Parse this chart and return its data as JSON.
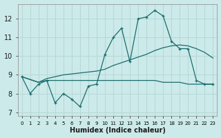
{
  "xlabel": "Humidex (Indice chaleur)",
  "bg_color": "#cceaea",
  "grid_color": "#b8d8d8",
  "line_color": "#1a6b6b",
  "xlim": [
    -0.5,
    23.5
  ],
  "ylim": [
    6.8,
    12.8
  ],
  "yticks": [
    7,
    8,
    9,
    10,
    11,
    12
  ],
  "xtick_labels": [
    "0",
    "1",
    "2",
    "3",
    "4",
    "5",
    "6",
    "7",
    "8",
    "9",
    "10",
    "11",
    "12",
    "13",
    "14",
    "15",
    "16",
    "17",
    "18",
    "19",
    "20",
    "21",
    "22",
    "23"
  ],
  "line1_x": [
    0,
    1,
    2,
    3,
    4,
    5,
    6,
    7,
    8,
    9,
    10,
    11,
    12,
    13,
    14,
    15,
    16,
    17,
    18,
    19,
    20,
    21,
    22,
    23
  ],
  "line1_y": [
    8.9,
    8.0,
    8.5,
    8.7,
    7.5,
    8.0,
    7.7,
    7.3,
    8.4,
    8.5,
    10.1,
    11.0,
    11.5,
    9.7,
    12.0,
    12.1,
    12.45,
    12.15,
    10.8,
    10.4,
    10.4,
    8.7,
    8.5,
    8.5
  ],
  "line2_x": [
    0,
    2,
    3,
    4,
    5,
    6,
    7,
    8,
    9,
    10,
    11,
    12,
    13,
    14,
    15,
    16,
    17,
    18,
    19,
    20,
    21,
    22,
    23
  ],
  "line2_y": [
    8.9,
    8.6,
    8.7,
    8.7,
    8.7,
    8.7,
    8.7,
    8.7,
    8.7,
    8.7,
    8.7,
    8.7,
    8.7,
    8.7,
    8.7,
    8.7,
    8.6,
    8.6,
    8.6,
    8.5,
    8.5,
    8.5,
    8.5
  ],
  "line3_x": [
    0,
    2,
    3,
    4,
    5,
    6,
    7,
    8,
    9,
    10,
    11,
    12,
    13,
    14,
    15,
    16,
    17,
    18,
    19,
    20,
    21,
    22,
    23
  ],
  "line3_y": [
    8.9,
    8.6,
    8.8,
    8.9,
    9.0,
    9.05,
    9.1,
    9.15,
    9.2,
    9.3,
    9.5,
    9.65,
    9.8,
    9.95,
    10.1,
    10.3,
    10.45,
    10.55,
    10.6,
    10.55,
    10.4,
    10.2,
    9.9
  ]
}
